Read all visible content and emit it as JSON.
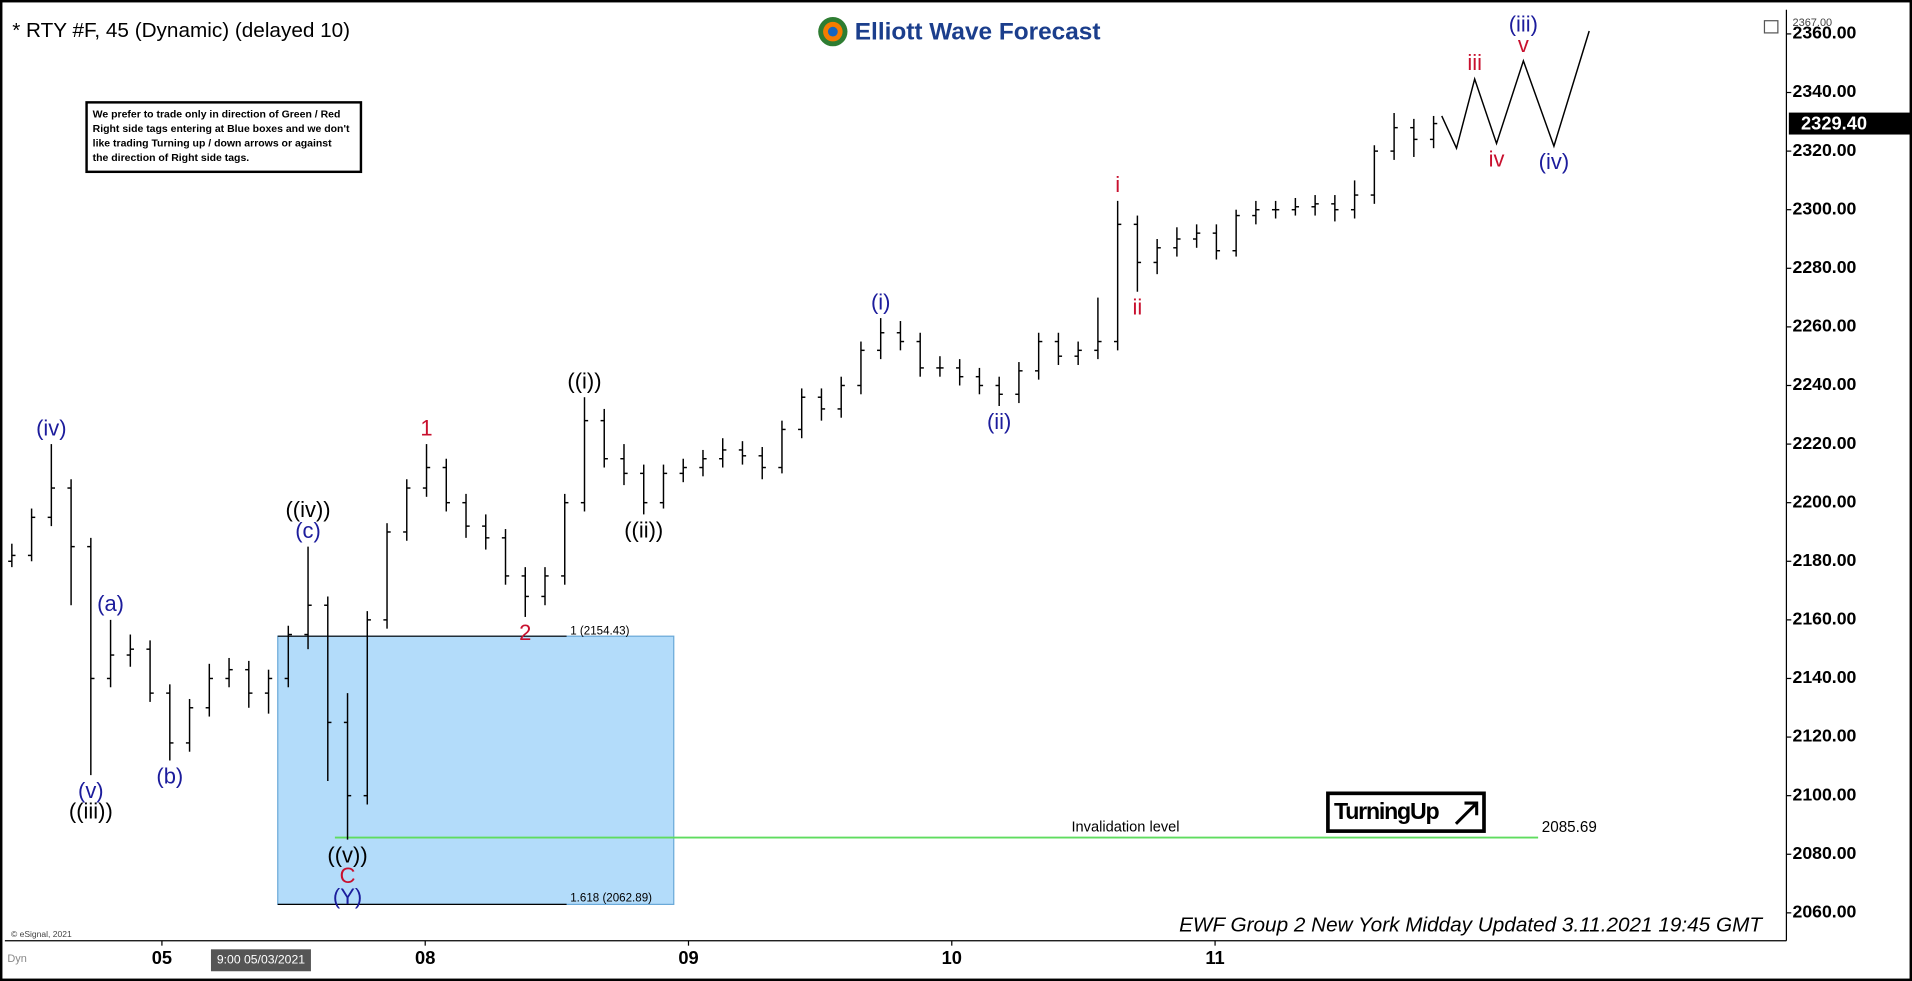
{
  "chart_data": {
    "type": "ohlc",
    "title": "* RTY #F, 45 (Dynamic) (delayed 10)",
    "logo": "Elliott Wave Forecast",
    "note": [
      "We prefer to trade only in direction of Green / Red",
      "Right side tags entering at Blue boxes and we don't",
      "like trading Turning up / down arrows or against",
      "the direction of Right side tags."
    ],
    "footer": "EWF Group 2 New York Midday Updated 3.11.2021 19:45 GMT",
    "copyright": "© eSignal, 2021",
    "cursor_label": "9:00 05/03/2021",
    "corner_label": "Dyn",
    "signal": "TurningUp",
    "color": "#000000",
    "xlim": [
      0.385,
      7.17
    ],
    "xticks": [
      {
        "value": 1,
        "label": "05"
      },
      {
        "value": 2,
        "label": "08"
      },
      {
        "value": 3,
        "label": "09"
      },
      {
        "value": 4,
        "label": "10"
      },
      {
        "value": 5,
        "label": "11"
      }
    ],
    "ylim": [
      2051.3,
      2367
    ],
    "ylim_top_label": "2367.00",
    "yticks": [
      {
        "value": 2060,
        "label": "2060.00"
      },
      {
        "value": 2080,
        "label": "2080.00"
      },
      {
        "value": 2100,
        "label": "2100.00"
      },
      {
        "value": 2120,
        "label": "2120.00"
      },
      {
        "value": 2140,
        "label": "2140.00"
      },
      {
        "value": 2160,
        "label": "2160.00"
      },
      {
        "value": 2180,
        "label": "2180.00"
      },
      {
        "value": 2200,
        "label": "2200.00"
      },
      {
        "value": 2220,
        "label": "2220.00"
      },
      {
        "value": 2240,
        "label": "2240.00"
      },
      {
        "value": 2260,
        "label": "2260.00"
      },
      {
        "value": 2280,
        "label": "2280.00"
      },
      {
        "value": 2300,
        "label": "2300.00"
      },
      {
        "value": 2320,
        "label": "2320.00"
      },
      {
        "value": 2340,
        "label": "2340.00"
      },
      {
        "value": 2360,
        "label": "2360.00"
      }
    ],
    "x": [
      0.43,
      0.505,
      0.58,
      0.655,
      0.73,
      0.805,
      0.88,
      0.955,
      1.03,
      1.105,
      1.18,
      1.255,
      1.33,
      1.405,
      1.48,
      1.555,
      1.63,
      1.705,
      1.78,
      1.855,
      1.93,
      2.005,
      2.08,
      2.155,
      2.23,
      2.305,
      2.38,
      2.455,
      2.53,
      2.605,
      2.68,
      2.755,
      2.83,
      2.905,
      2.98,
      3.055,
      3.13,
      3.205,
      3.28,
      3.355,
      3.43,
      3.505,
      3.58,
      3.655,
      3.73,
      3.805,
      3.88,
      3.955,
      4.03,
      4.105,
      4.18,
      4.255,
      4.33,
      4.405,
      4.48,
      4.555,
      4.63,
      4.705,
      4.78,
      4.855,
      4.93,
      5.005,
      5.08,
      5.155,
      5.23,
      5.305,
      5.38,
      5.455,
      5.53,
      5.605,
      5.68,
      5.755,
      5.83
    ],
    "open": [
      2180,
      2182,
      2195,
      2205,
      2185,
      2140,
      2148,
      2150,
      2135,
      2118,
      2130,
      2140,
      2143,
      2135,
      2140,
      2155,
      2165,
      2125,
      2100,
      2160,
      2190,
      2205,
      2212,
      2200,
      2192,
      2188,
      2175,
      2168,
      2175,
      2200,
      2228,
      2215,
      2210,
      2200,
      2210,
      2212,
      2215,
      2218,
      2216,
      2212,
      2225,
      2236,
      2232,
      2240,
      2252,
      2258,
      2255,
      2246,
      2246,
      2243,
      2240,
      2237,
      2245,
      2255,
      2250,
      2252,
      2255,
      2295,
      2282,
      2287,
      2290,
      2292,
      2286,
      2298,
      2300,
      2300,
      2301,
      2302,
      2300,
      2305,
      2320,
      2328,
      2324
    ],
    "high": [
      2186,
      2198,
      2220,
      2208,
      2188,
      2160,
      2155,
      2153,
      2138,
      2133,
      2145,
      2147,
      2146,
      2143,
      2158,
      2185,
      2168,
      2135,
      2163,
      2193,
      2208,
      2220,
      2215,
      2203,
      2196,
      2191,
      2178,
      2178,
      2203,
      2236,
      2232,
      2220,
      2213,
      2213,
      2215,
      2218,
      2222,
      2221,
      2219,
      2228,
      2239,
      2239,
      2243,
      2255,
      2263,
      2262,
      2258,
      2250,
      2249,
      2246,
      2243,
      2248,
      2258,
      2258,
      2255,
      2270,
      2303,
      2298,
      2290,
      2294,
      2295,
      2295,
      2300,
      2303,
      2303,
      2304,
      2305,
      2305,
      2310,
      2322,
      2333,
      2331,
      2332
    ],
    "low": [
      2178,
      2180,
      2192,
      2165,
      2107,
      2137,
      2144,
      2132,
      2112,
      2115,
      2127,
      2137,
      2130,
      2128,
      2137,
      2150,
      2105,
      2085,
      2097,
      2157,
      2187,
      2202,
      2197,
      2188,
      2184,
      2172,
      2161,
      2165,
      2172,
      2197,
      2212,
      2206,
      2196,
      2198,
      2207,
      2209,
      2212,
      2213,
      2208,
      2210,
      2222,
      2228,
      2229,
      2237,
      2249,
      2252,
      2243,
      2243,
      2240,
      2237,
      2233,
      2234,
      2242,
      2247,
      2247,
      2249,
      2252,
      2272,
      2278,
      2284,
      2287,
      2283,
      2284,
      2295,
      2297,
      2298,
      2298,
      2296,
      2297,
      2302,
      2317,
      2318,
      2321
    ],
    "close": [
      2182,
      2195,
      2205,
      2185,
      2140,
      2148,
      2150,
      2135,
      2118,
      2130,
      2140,
      2143,
      2135,
      2140,
      2155,
      2165,
      2125,
      2100,
      2160,
      2190,
      2205,
      2212,
      2200,
      2192,
      2188,
      2175,
      2168,
      2175,
      2200,
      2228,
      2215,
      2210,
      2200,
      2210,
      2212,
      2215,
      2218,
      2216,
      2212,
      2225,
      2236,
      2232,
      2240,
      2252,
      2258,
      2255,
      2246,
      2246,
      2243,
      2240,
      2237,
      2245,
      2255,
      2250,
      2252,
      2255,
      2295,
      2282,
      2287,
      2290,
      2292,
      2286,
      2298,
      2300,
      2300,
      2301,
      2302,
      2300,
      2305,
      2320,
      2328,
      2324,
      2329.4
    ],
    "last_close_label": "2329.40",
    "projection": {
      "x": [
        5.861,
        5.917,
        5.986,
        6.069,
        6.171,
        6.287,
        6.421
      ],
      "values": [
        2332,
        2321,
        2344.6,
        2322.6,
        2350.8,
        2321.7,
        2361
      ]
    },
    "box": {
      "x": [
        1.44,
        2.944
      ],
      "top": 2154.43,
      "bottom": 2062.89,
      "line_end": 2.537,
      "top_label": "1 (2154.43)",
      "bottom_label": "1.618 (2062.89)",
      "color": "#b3dcfa"
    },
    "invalidation": {
      "label": "Invalidation level",
      "value": 2085.69,
      "value_label": "2085.69",
      "x": [
        1.657,
        6.227
      ],
      "color": "#5fdc5f"
    },
    "bar_labels": [
      {
        "index": 2,
        "side": "above",
        "texts": [
          "(iv)"
        ],
        "colors": [
          "#1c1c9c"
        ]
      },
      {
        "index": 4,
        "side": "below",
        "texts": [
          "(v)",
          "((iii))"
        ],
        "colors": [
          "#1c1c9c",
          "#000000"
        ]
      },
      {
        "index": 5,
        "side": "above",
        "texts": [
          "(a)"
        ],
        "colors": [
          "#1c1c9c"
        ]
      },
      {
        "index": 8,
        "side": "below",
        "texts": [
          "(b)"
        ],
        "colors": [
          "#1c1c9c"
        ]
      },
      {
        "index": 15,
        "side": "above",
        "texts": [
          "(c)",
          "((iv))"
        ],
        "colors": [
          "#1c1c9c",
          "#000000"
        ]
      },
      {
        "index": 17,
        "side": "below",
        "texts": [
          "((v))",
          "C",
          "(Y)"
        ],
        "colors": [
          "#000000",
          "#c8102e",
          "#1c1c9c"
        ]
      },
      {
        "index": 21,
        "side": "above",
        "texts": [
          "1"
        ],
        "colors": [
          "#c8102e"
        ]
      },
      {
        "index": 26,
        "side": "below",
        "texts": [
          "2"
        ],
        "colors": [
          "#c8102e"
        ]
      },
      {
        "index": 29,
        "side": "above",
        "texts": [
          "((i))"
        ],
        "colors": [
          "#000000"
        ]
      },
      {
        "index": 32,
        "side": "below",
        "texts": [
          "((ii))"
        ],
        "colors": [
          "#000000"
        ]
      },
      {
        "index": 44,
        "side": "above",
        "texts": [
          "(i)"
        ],
        "colors": [
          "#1c1c9c"
        ]
      },
      {
        "index": 50,
        "side": "below",
        "texts": [
          "(ii)"
        ],
        "colors": [
          "#1c1c9c"
        ]
      },
      {
        "index": 56,
        "side": "above",
        "texts": [
          "i"
        ],
        "colors": [
          "#c8102e"
        ]
      },
      {
        "index": 57,
        "side": "below",
        "texts": [
          "ii"
        ],
        "colors": [
          "#c8102e"
        ]
      }
    ],
    "projection_labels": [
      {
        "index": 2,
        "side": "above",
        "texts": [
          "iii"
        ],
        "colors": [
          "#c8102e"
        ]
      },
      {
        "index": 3,
        "side": "below",
        "texts": [
          "iv"
        ],
        "colors": [
          "#c8102e"
        ]
      },
      {
        "index": 4,
        "side": "above",
        "texts": [
          "v",
          "(iii)"
        ],
        "colors": [
          "#c8102e",
          "#1c1c9c"
        ]
      },
      {
        "index": 5,
        "side": "below",
        "texts": [
          "(iv)"
        ],
        "colors": [
          "#1c1c9c"
        ]
      }
    ]
  }
}
